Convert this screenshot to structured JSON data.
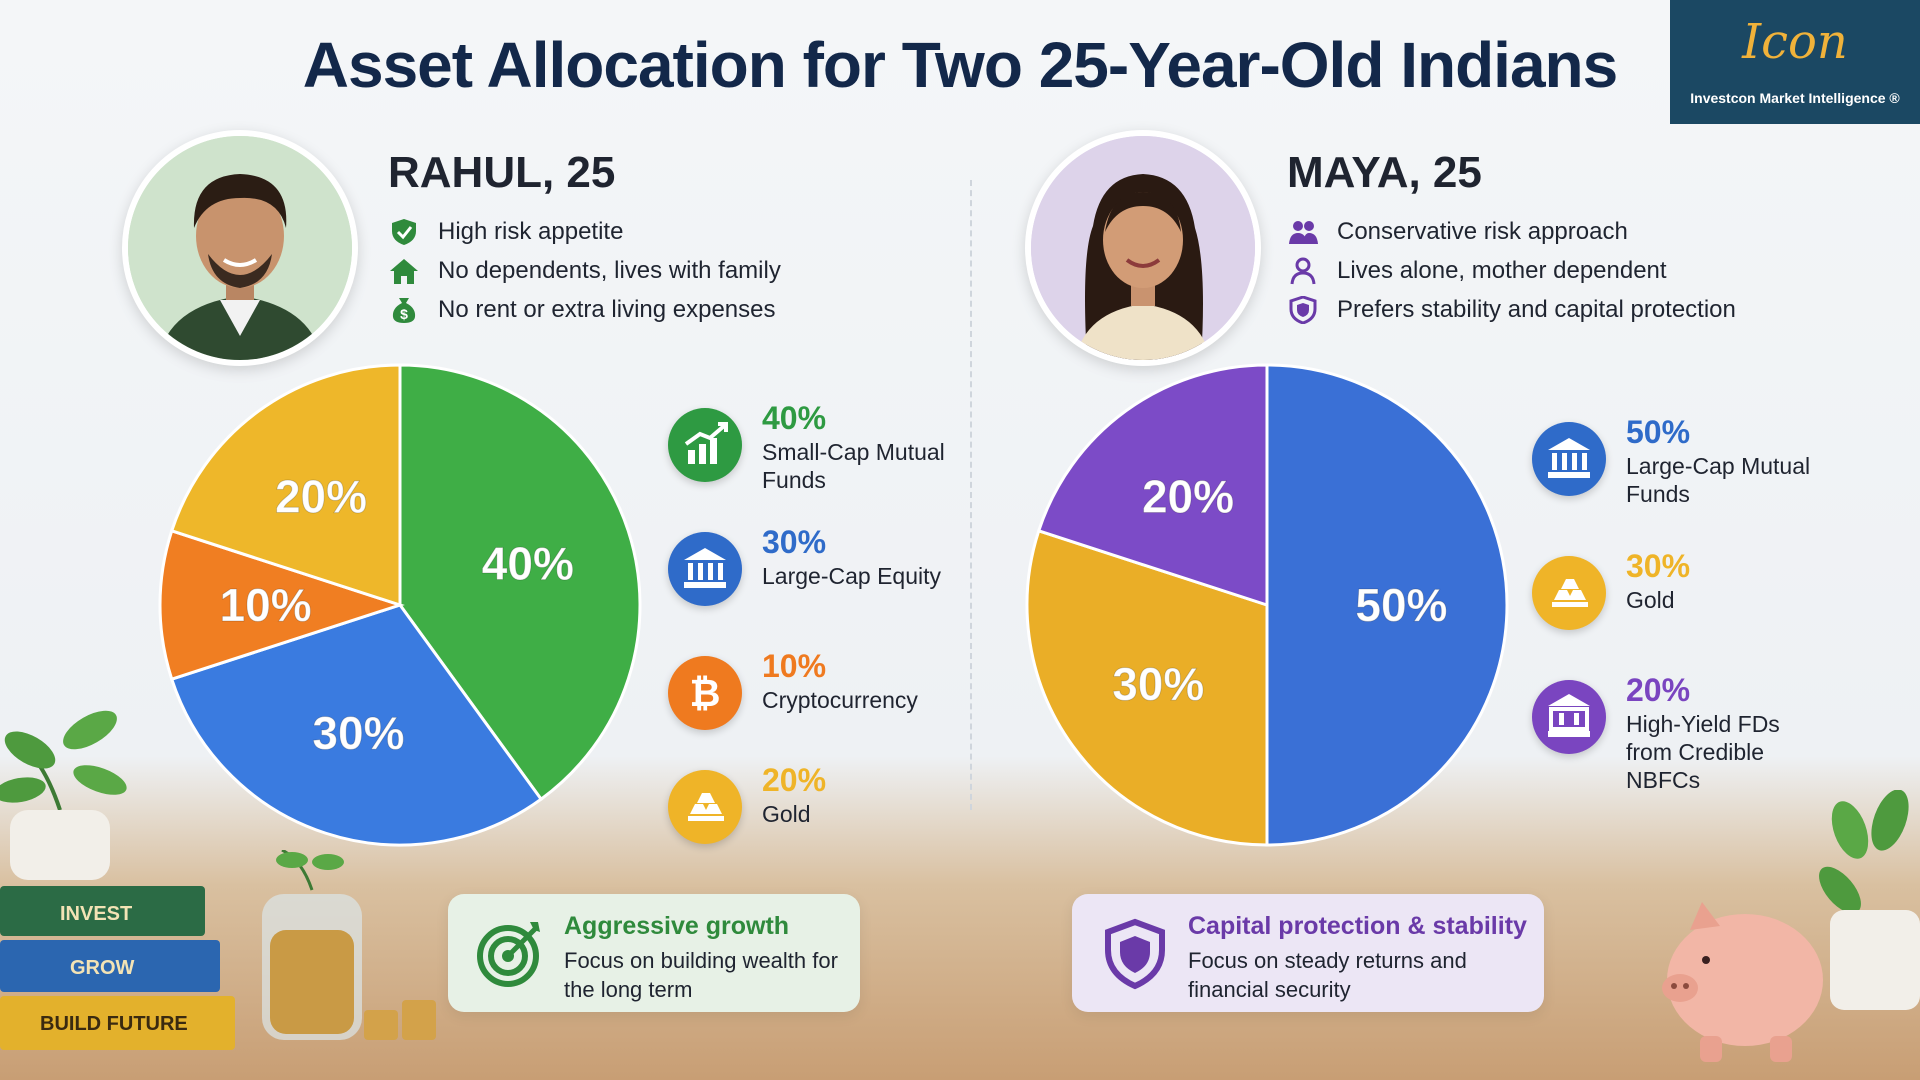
{
  "title": "Asset Allocation for Two 25-Year-Old Indians",
  "logo": {
    "mark": "Icon",
    "text": "Investcon Market Intelligence ®",
    "bg_color": "#1b4863",
    "mark_color": "#f0b23a"
  },
  "profiles": [
    {
      "name": "RAHUL, 25",
      "name_color": "#2f8a3c",
      "traits": [
        {
          "icon": "shield-check-icon",
          "text": "High risk appetite"
        },
        {
          "icon": "home-icon",
          "text": "No dependents, lives with family"
        },
        {
          "icon": "money-bag-icon",
          "text": "No rent or extra living expenses"
        }
      ],
      "legend": [
        {
          "icon": "growth-chart-icon",
          "pct": "40%",
          "label": "Small-Cap Mutual Funds",
          "color": "#2e9a42"
        },
        {
          "icon": "bank-icon",
          "pct": "30%",
          "label": "Large-Cap Equity",
          "color": "#2f6bc9"
        },
        {
          "icon": "bitcoin-icon",
          "pct": "10%",
          "label": "Cryptocurrency",
          "color": "#ef7a1f"
        },
        {
          "icon": "gold-bars-icon",
          "pct": "20%",
          "label": "Gold",
          "color": "#efb428"
        }
      ],
      "card": {
        "icon": "target-icon",
        "title": "Aggressive growth",
        "text": "Focus on building wealth for the long term",
        "title_color": "#2f8a3c",
        "bg_color": "#e7f1e6"
      }
    },
    {
      "name": "MAYA, 25",
      "name_color": "#6a3aa8",
      "traits": [
        {
          "icon": "people-icon",
          "text": "Conservative risk approach"
        },
        {
          "icon": "person-icon",
          "text": "Lives alone, mother dependent"
        },
        {
          "icon": "shield-icon",
          "text": "Prefers stability and capital protection"
        }
      ],
      "legend": [
        {
          "icon": "bank-icon",
          "pct": "50%",
          "label": "Large-Cap Mutual Funds",
          "color": "#2f6bc9"
        },
        {
          "icon": "gold-bars-icon",
          "pct": "30%",
          "label": "Gold",
          "color": "#efb428"
        },
        {
          "icon": "bank-deposit-icon",
          "pct": "20%",
          "label": "High-Yield FDs from Credible NBFCs",
          "color": "#7a45c0"
        }
      ],
      "card": {
        "icon": "shield-lock-icon",
        "title": "Capital protection & stability",
        "text": "Focus on steady returns and financial security",
        "title_color": "#6a3aa8",
        "bg_color": "#ece6f5"
      }
    }
  ],
  "decor": {
    "books": [
      "INVEST",
      "GROW",
      "BUILD FUTURE"
    ]
  },
  "chart_data": [
    {
      "type": "pie",
      "categories": [
        "Small-Cap Mutual Funds",
        "Large-Cap Equity",
        "Cryptocurrency",
        "Gold"
      ],
      "values": [
        40,
        30,
        10,
        20
      ],
      "labels": [
        "40%",
        "30%",
        "10%",
        "20%"
      ],
      "colors": [
        "#3fae46",
        "#3a7be0",
        "#f07e22",
        "#eeb72a"
      ],
      "title": "",
      "legend": "right"
    },
    {
      "type": "pie",
      "categories": [
        "Large-Cap Mutual Funds",
        "Gold",
        "High-Yield FDs from Credible NBFCs"
      ],
      "values": [
        50,
        30,
        20
      ],
      "labels": [
        "50%",
        "30%",
        "20%"
      ],
      "colors": [
        "#3a70d6",
        "#eaae27",
        "#7c4bc7"
      ],
      "title": "",
      "legend": "right"
    }
  ]
}
